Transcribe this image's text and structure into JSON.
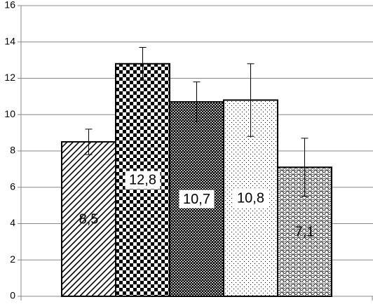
{
  "chart_data": {
    "type": "bar",
    "categories": [
      null,
      null,
      null,
      null,
      null
    ],
    "values": [
      8.5,
      12.8,
      10.7,
      10.8,
      7.1
    ],
    "value_labels": [
      "8,5",
      "12,8",
      "10,7",
      "10,8",
      "7,1"
    ],
    "errors": [
      0.7,
      0.9,
      1.1,
      2.0,
      1.6
    ],
    "color": "#000000",
    "ylim": [
      0,
      16
    ],
    "yticks": [
      0,
      2,
      4,
      6,
      8,
      10,
      12,
      14,
      16
    ],
    "grid": true
  }
}
